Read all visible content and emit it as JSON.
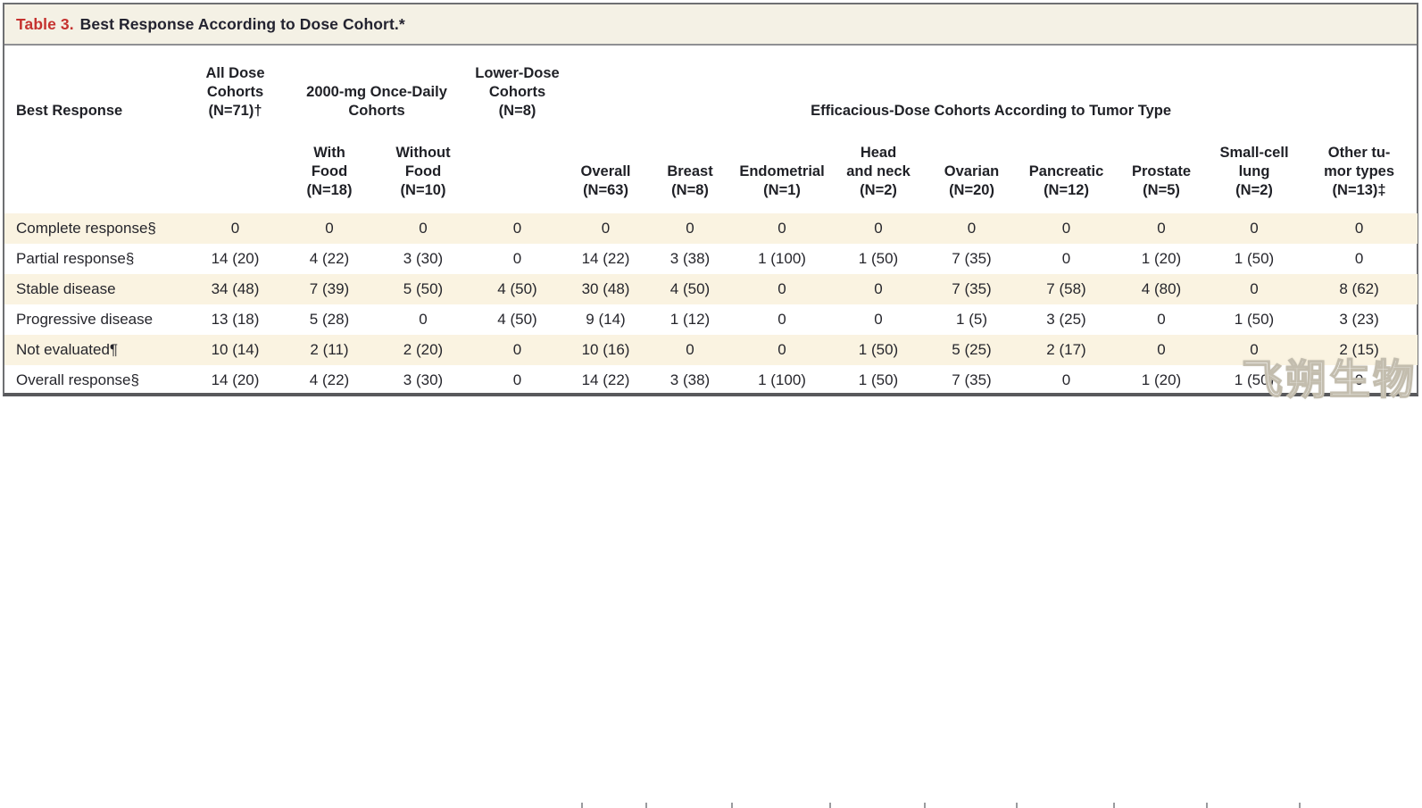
{
  "title": {
    "label": "Table 3.",
    "text": "Best Response According to Dose Cohort.*"
  },
  "header": {
    "best_response": "Best Response",
    "groups": {
      "all_dose": "All Dose\nCohorts\n(N=71)†",
      "once_daily": "2000-mg Once-Daily\nCohorts",
      "lower_dose": "Lower-Dose\nCohorts\n(N=8)",
      "efficacious": "Efficacious-Dose Cohorts According to Tumor Type"
    },
    "sub": {
      "with_food": "With\nFood\n(N=18)",
      "without_food": "Without\nFood\n(N=10)",
      "overall": "Overall\n(N=63)",
      "breast": "Breast\n(N=8)",
      "endometrial": "Endometrial\n(N=1)",
      "head_neck": "Head\nand neck\n(N=2)",
      "ovarian": "Ovarian\n(N=20)",
      "pancreatic": "Pancreatic\n(N=12)",
      "prostate": "Prostate\n(N=5)",
      "small_cell": "Small-cell\nlung\n(N=2)",
      "other": "Other tu-\nmor types\n(N=13)‡"
    }
  },
  "rows": [
    {
      "label": "Complete response§",
      "values": [
        "0",
        "0",
        "0",
        "0",
        "0",
        "0",
        "0",
        "0",
        "0",
        "0",
        "0",
        "0",
        "0"
      ]
    },
    {
      "label": "Partial response§",
      "values": [
        "14 (20)",
        "4 (22)",
        "3 (30)",
        "0",
        "14 (22)",
        "3 (38)",
        "1 (100)",
        "1 (50)",
        "7 (35)",
        "0",
        "1 (20)",
        "1 (50)",
        "0"
      ]
    },
    {
      "label": "Stable disease",
      "values": [
        "34 (48)",
        "7 (39)",
        "5 (50)",
        "4 (50)",
        "30 (48)",
        "4 (50)",
        "0",
        "0",
        "7 (35)",
        "7 (58)",
        "4 (80)",
        "0",
        "8 (62)"
      ]
    },
    {
      "label": "Progressive disease",
      "values": [
        "13 (18)",
        "5 (28)",
        "0",
        "4 (50)",
        "9 (14)",
        "1 (12)",
        "0",
        "0",
        "1 (5)",
        "3 (25)",
        "0",
        "1 (50)",
        "3 (23)"
      ]
    },
    {
      "label": "Not evaluated¶",
      "values": [
        "10 (14)",
        "2 (11)",
        "2 (20)",
        "0",
        "10 (16)",
        "0",
        "0",
        "1 (50)",
        "5 (25)",
        "2 (17)",
        "0",
        "0",
        "2 (15)"
      ]
    },
    {
      "label": "Overall response§",
      "values": [
        "14 (20)",
        "4 (22)",
        "3 (30)",
        "0",
        "14 (22)",
        "3 (38)",
        "1 (100)",
        "1 (50)",
        "7 (35)",
        "0",
        "1 (20)",
        "1 (50)",
        "0"
      ]
    }
  ],
  "watermark": "飞朔生物",
  "colors": {
    "title_accent": "#c5322f",
    "stripe_beige": "#faf3e1",
    "title_bar_bg": "#f4f1e5",
    "border_gray": "#6e6f72",
    "text_dark": "#26262c"
  }
}
